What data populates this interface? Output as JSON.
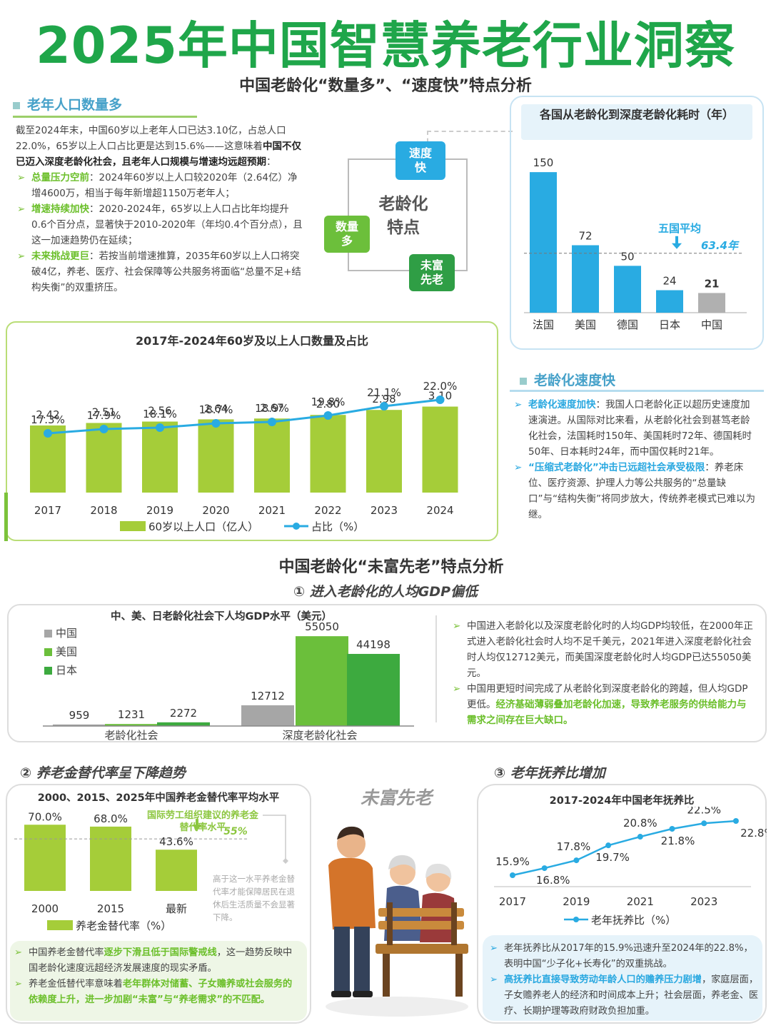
{
  "title": "2025年中国智慧养老行业洞察",
  "section1": {
    "title": "中国老龄化“数量多”、“速度快”特点分析"
  },
  "left_text": {
    "heading": "老年人口数量多",
    "intro": "截至2024年末，中国60岁以上老年人口已达3.10亿，占总人口22.0%，65岁以上人口占比更是达到15.6%——这意味着",
    "intro_bold": "中国不仅已迈入深度老龄化社会，且老年人口规模与增速均远超预期",
    "intro_end": "：",
    "bullets": [
      {
        "head": "总量压力空前",
        "text": "：2024年60岁以上人口较2020年（2.64亿）净增4600万，相当于每年新增超1150万老年人；"
      },
      {
        "head": "增速持续加快",
        "text": "：2020-2024年，65岁以上人口占比年均提升0.6个百分点，显著快于2010-2020年（年均0.4个百分点），且这一加速趋势仍在延续；"
      },
      {
        "head": "未来挑战更巨",
        "text": "：若按当前增速推算，2035年60岁以上人口将突破4亿，养老、医疗、社会保障等公共服务将面临“总量不足+结构失衡”的双重挤压。"
      }
    ]
  },
  "diagram": {
    "center": "老龄化\n特点",
    "top": "速度\n快",
    "left": "数量\n多",
    "bottom": "未富\n先老"
  },
  "chart_data": [
    {
      "type": "bar",
      "title": "各国从老龄化到深度老龄化耗时（年）",
      "categories": [
        "法国",
        "美国",
        "德国",
        "日本",
        "中国"
      ],
      "values": [
        150,
        72,
        50,
        24,
        21
      ],
      "reference": {
        "label": "五国平均",
        "value": 63.4,
        "value_label": "63.4年"
      },
      "ylim": [
        0,
        160
      ],
      "colors": [
        "#29abe2",
        "#29abe2",
        "#29abe2",
        "#29abe2",
        "#b0b0b0"
      ]
    },
    {
      "type": "bar+line",
      "title": "2017年-2024年60岁及以上人口数量及占比",
      "categories": [
        "2017",
        "2018",
        "2019",
        "2020",
        "2021",
        "2022",
        "2023",
        "2024"
      ],
      "series": [
        {
          "name": "60岁以上人口（亿人）",
          "type": "bar",
          "values": [
            2.42,
            2.51,
            2.56,
            2.64,
            2.67,
            2.8,
            2.98,
            3.1
          ]
        },
        {
          "name": "占比（%）",
          "type": "line",
          "values": [
            17.3,
            17.9,
            18.1,
            18.7,
            18.9,
            19.8,
            21.1,
            22.0
          ]
        }
      ],
      "bar_labels": [
        "2.42",
        "2.51",
        "2.56",
        "2.64",
        "2.67",
        "2.80",
        "2.98",
        "3.10"
      ],
      "line_labels": [
        "17.3%",
        "17.9%",
        "18.1%",
        "18.7%",
        "18.9%",
        "19.8%",
        "21.1%",
        "22.0%"
      ],
      "legend": "bottom"
    },
    {
      "type": "grouped-bar",
      "title": "中、美、日老龄化社会下人均GDP水平（美元）",
      "categories": [
        "老龄化社会",
        "深度老龄化社会"
      ],
      "series": [
        {
          "name": "中国",
          "values": [
            959,
            12712
          ]
        },
        {
          "name": "美国",
          "values": [
            1231,
            55050
          ]
        },
        {
          "name": "日本",
          "values": [
            2272,
            44198
          ]
        }
      ],
      "legend": "top-left"
    },
    {
      "type": "bar",
      "title": "2000、2015、2025年中国养老金替代率平均水平",
      "categories": [
        "2000",
        "2015",
        "最新"
      ],
      "values": [
        70.0,
        68.0,
        43.6
      ],
      "value_labels": [
        "70.0%",
        "68.0%",
        "43.6%"
      ],
      "series_name": "养老金替代率（%）",
      "reference": {
        "label": "国际劳工组织建议的养老金替代率水平",
        "value": 55,
        "value_label": "55%"
      },
      "ylim": [
        0,
        80
      ]
    },
    {
      "type": "line",
      "title": "2017-2024年中国老年抚养比",
      "x": [
        "2017",
        "2018",
        "2019",
        "2020",
        "2021",
        "2022",
        "2023",
        "2024"
      ],
      "tick_labels": [
        "2017",
        "2019",
        "2021",
        "2023"
      ],
      "series": [
        {
          "name": "老年抚养比（%）",
          "values": [
            15.9,
            16.8,
            17.8,
            19.7,
            20.8,
            21.8,
            22.5,
            22.8
          ]
        }
      ],
      "value_labels": [
        "15.9%",
        "16.8%",
        "17.8%",
        "19.7%",
        "20.8%",
        "21.8%",
        "22.5%",
        "22.8%"
      ],
      "legend": "bottom"
    }
  ],
  "speed_text": {
    "heading": "老龄化速度快",
    "b1_head": "老龄化速度加快",
    "b1_text": "：我国人口老龄化正以超历史速度加速演进。从国际对比来看，从老龄化社会到甚笃老龄化社会，法国耗时150年、美国耗时72年、德国耗时50年、日本耗时24年，而中国仅耗时21年。",
    "b2_head": "“压缩式老龄化”冲击已远超社会承受极限",
    "b2_text": "：养老床位、医疗资源、护理人力等公共服务的“总量缺口”与“结构失衡”将同步放大，传统养老模式已难以为继。"
  },
  "section2": {
    "title": "中国老龄化“未富先老”特点分析",
    "sub1": "① 进入老龄化的人均GDP偏低",
    "sub2": "② 养老金替代率呈下降趋势",
    "sub3": "③ 老年抚养比增加",
    "center_label": "未富先老"
  },
  "gdp_text": {
    "b1": "中国进入老龄化以及深度老龄化时的人均GDP均较低，在2000年正式进入老龄化社会时人均不足千美元，2021年进入深度老龄化社会时人均仅12712美元，而美国深度老龄化时人均GDP已达55050美元。",
    "b2": "中国用更短时间完成了从老龄化到深度老龄化的跨越，但人均GDP更低。",
    "b2_green": "经济基础薄弱叠加老龄化加速，导致养老服务的供给能力与需求之间存在巨大缺口。"
  },
  "pension_note": "高于这一水平养老金替代率才能保障居民在退休后生活质量不会显著下降。",
  "pension_text": {
    "b1_a": "中国养老金替代率",
    "b1_green": "逐步下滑且低于国际警戒线",
    "b1_b": "，这一趋势反映中国老龄化速度远超经济发展速度的现实矛盾。",
    "b2_a": "养老金低替代率意味着",
    "b2_green": "老年群体对储蓄、子女赡养或社会服务的依赖度上升，进一步加剧“未富”与“养老需求”的不匹配。"
  },
  "dep_text": {
    "b1": "老年抚养比从2017年的15.9%迅速升至2024年的22.8%，表明中国“少子化+长寿化”的双重挑战。",
    "b2_blue": "高抚养比直接导致劳动年龄人口的赡养压力剧增",
    "b2_text": "，家庭层面，子女赡养老人的经济和时间成本上升；社会层面，养老金、医疗、长期护理等政府财政负担加重。"
  },
  "colors": {
    "brand_green": "#1fa64a",
    "bar_green": "#a5cd39",
    "dark_green": "#3daa3f",
    "blue": "#29abe2",
    "gray": "#a6a6a6"
  }
}
